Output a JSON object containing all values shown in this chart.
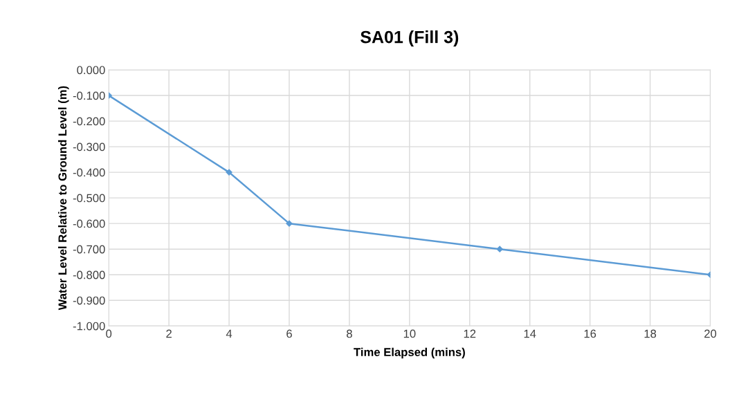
{
  "chart_data": {
    "type": "line",
    "title": "SA01 (Fill 3)",
    "xlabel": "Time Elapsed (mins)",
    "ylabel": "Water Level Relative to Ground Level (m)",
    "x": [
      0,
      4,
      6,
      13,
      20
    ],
    "series": [
      {
        "color": "#5b9bd5",
        "values": [
          -0.1,
          -0.4,
          -0.6,
          -0.7,
          -0.8
        ]
      }
    ],
    "xlim": [
      0,
      20
    ],
    "xticks": [
      0,
      2,
      4,
      6,
      8,
      10,
      12,
      14,
      16,
      18,
      20
    ],
    "ylim": [
      -1.0,
      0.0
    ],
    "yticks": [
      {
        "value": 0.0,
        "label": "0.000"
      },
      {
        "value": -0.1,
        "label": "-0.100"
      },
      {
        "value": -0.2,
        "label": "-0.200"
      },
      {
        "value": -0.3,
        "label": "-0.300"
      },
      {
        "value": -0.4,
        "label": "-0.400"
      },
      {
        "value": -0.5,
        "label": "-0.500"
      },
      {
        "value": -0.6,
        "label": "-0.600"
      },
      {
        "value": -0.7,
        "label": "-0.700"
      },
      {
        "value": -0.8,
        "label": "-0.800"
      },
      {
        "value": -0.9,
        "label": "-0.900"
      },
      {
        "value": -1.0,
        "label": "-1.000"
      }
    ],
    "grid": true,
    "legend": false,
    "marker": "diamond",
    "line_style": "solid"
  }
}
